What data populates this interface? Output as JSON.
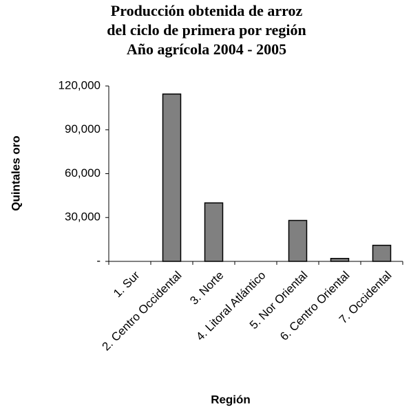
{
  "chart_data": {
    "type": "bar",
    "title": [
      "Producción obtenida de arroz",
      "del ciclo de primera por región",
      "Año agrícola 2004 - 2005"
    ],
    "x_label": "Región",
    "y_label": "Quintales oro",
    "categories": [
      "1. Sur",
      "2. Centro Occidental",
      "3. Norte",
      "4. Litoral Atlántico",
      "5. Nor Oriental",
      "6. Centro Oriental",
      "7. Occidental"
    ],
    "values": [
      0,
      114500,
      40000,
      0,
      28000,
      2000,
      11000
    ],
    "color": "#808080",
    "ylim": [
      0,
      120000
    ],
    "yticks": [
      {
        "value": 0,
        "label": "-"
      },
      {
        "value": 30000,
        "label": "30,000"
      },
      {
        "value": 60000,
        "label": "60,000"
      },
      {
        "value": 90000,
        "label": "90,000"
      },
      {
        "value": 120000,
        "label": "120,000"
      }
    ],
    "grid": false
  }
}
